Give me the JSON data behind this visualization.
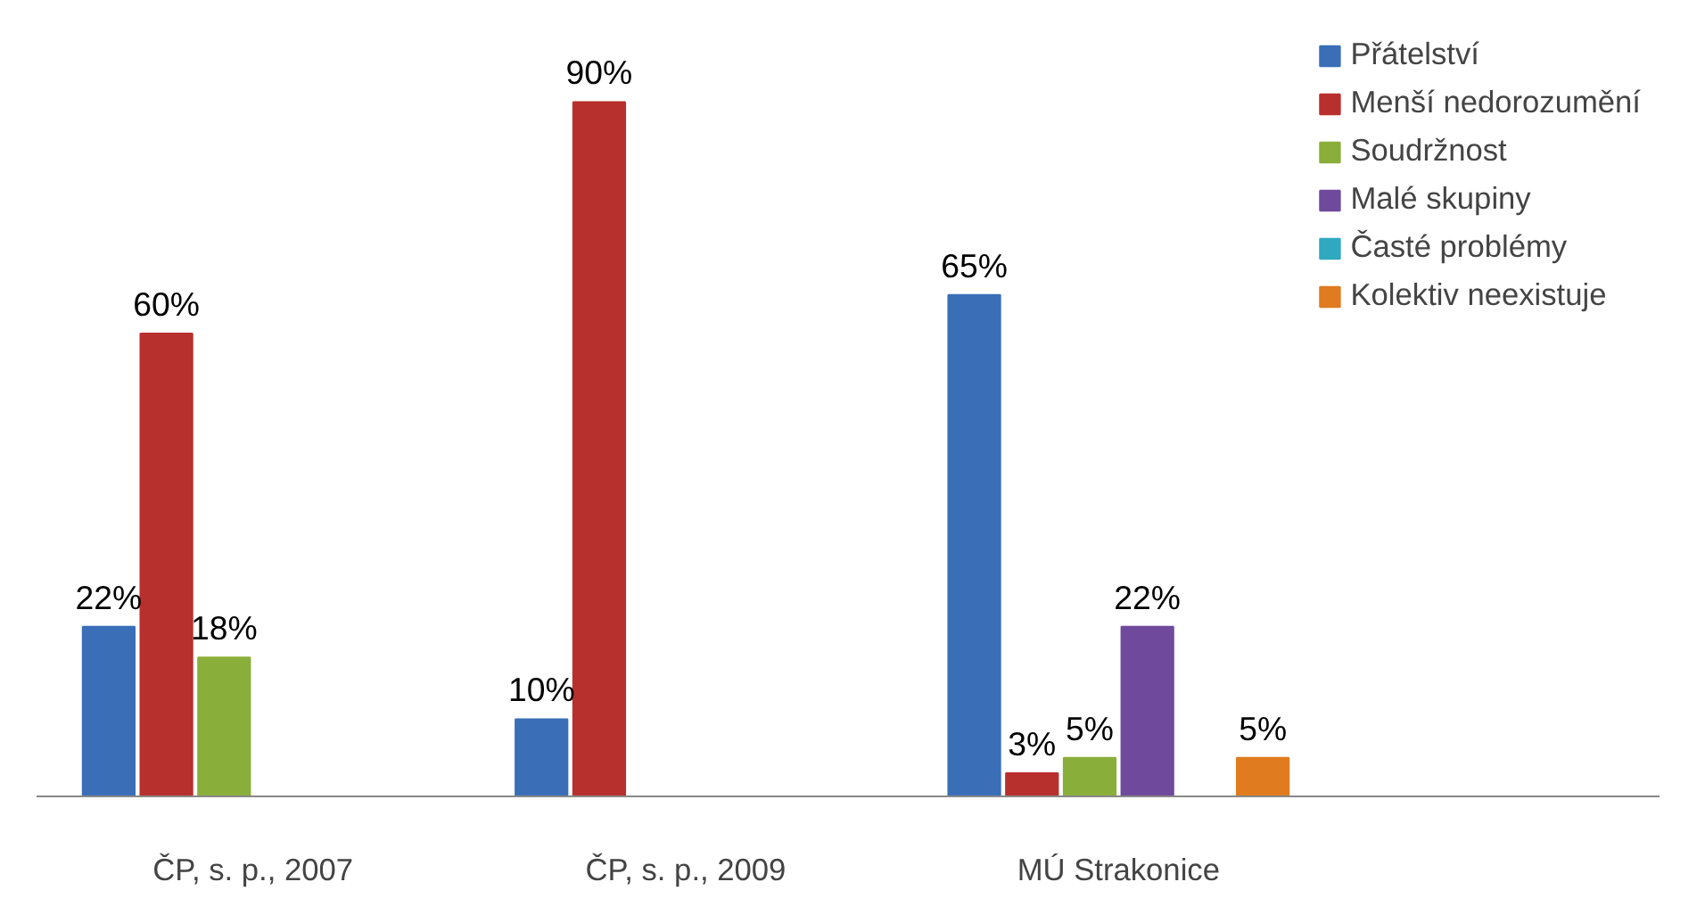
{
  "chart_data": {
    "type": "bar",
    "categories": [
      "ČP, s. p., 2007",
      "ČP, s. p., 2009",
      "MÚ Strakonice"
    ],
    "grid": false,
    "legend": "right",
    "series": [
      {
        "name": "Přátelství",
        "color": "#3a6fb8",
        "values": [
          22,
          10,
          65
        ],
        "value_labels": [
          "22%",
          "10%",
          "65%"
        ]
      },
      {
        "name": "Menší nedorozumění",
        "color": "#b8302e",
        "values": [
          60,
          90,
          3
        ],
        "value_labels": [
          "60%",
          "90%",
          "3%"
        ]
      },
      {
        "name": "Soudržnost",
        "color": "#8aae3a",
        "values": [
          18,
          null,
          5
        ],
        "value_labels": [
          "18%",
          null,
          "5%"
        ]
      },
      {
        "name": "Malé skupiny",
        "color": "#6f4a9c",
        "values": [
          null,
          null,
          22
        ],
        "value_labels": [
          null,
          null,
          "22%"
        ]
      },
      {
        "name": "Časté problémy",
        "color": "#30a8c0",
        "values": [
          null,
          null,
          null
        ],
        "value_labels": [
          null,
          null,
          null
        ]
      },
      {
        "name": "Kolektiv neexistuje",
        "color": "#e07b1f",
        "values": [
          null,
          null,
          5
        ],
        "value_labels": [
          null,
          null,
          "5%"
        ]
      }
    ]
  }
}
